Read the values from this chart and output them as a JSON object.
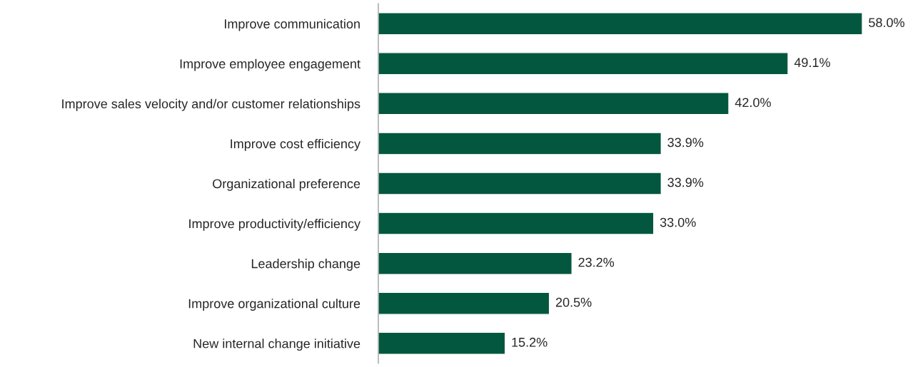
{
  "chart_data": {
    "type": "bar",
    "orientation": "horizontal",
    "categories": [
      "Improve communication",
      "Improve employee engagement",
      "Improve sales velocity and/or customer relationships",
      "Improve cost efficiency",
      "Organizational preference",
      "Improve productivity/efficiency",
      "Leadership change",
      "Improve organizational culture",
      "New internal change initiative"
    ],
    "values": [
      58.0,
      49.1,
      42.0,
      33.9,
      33.9,
      33.0,
      23.2,
      20.5,
      15.2
    ],
    "value_labels": [
      "58.0%",
      "49.1%",
      "42.0%",
      "33.9%",
      "33.9%",
      "33.0%",
      "23.2%",
      "20.5%",
      "15.2%"
    ],
    "color": "#03573f",
    "grid": false,
    "legend": false
  }
}
